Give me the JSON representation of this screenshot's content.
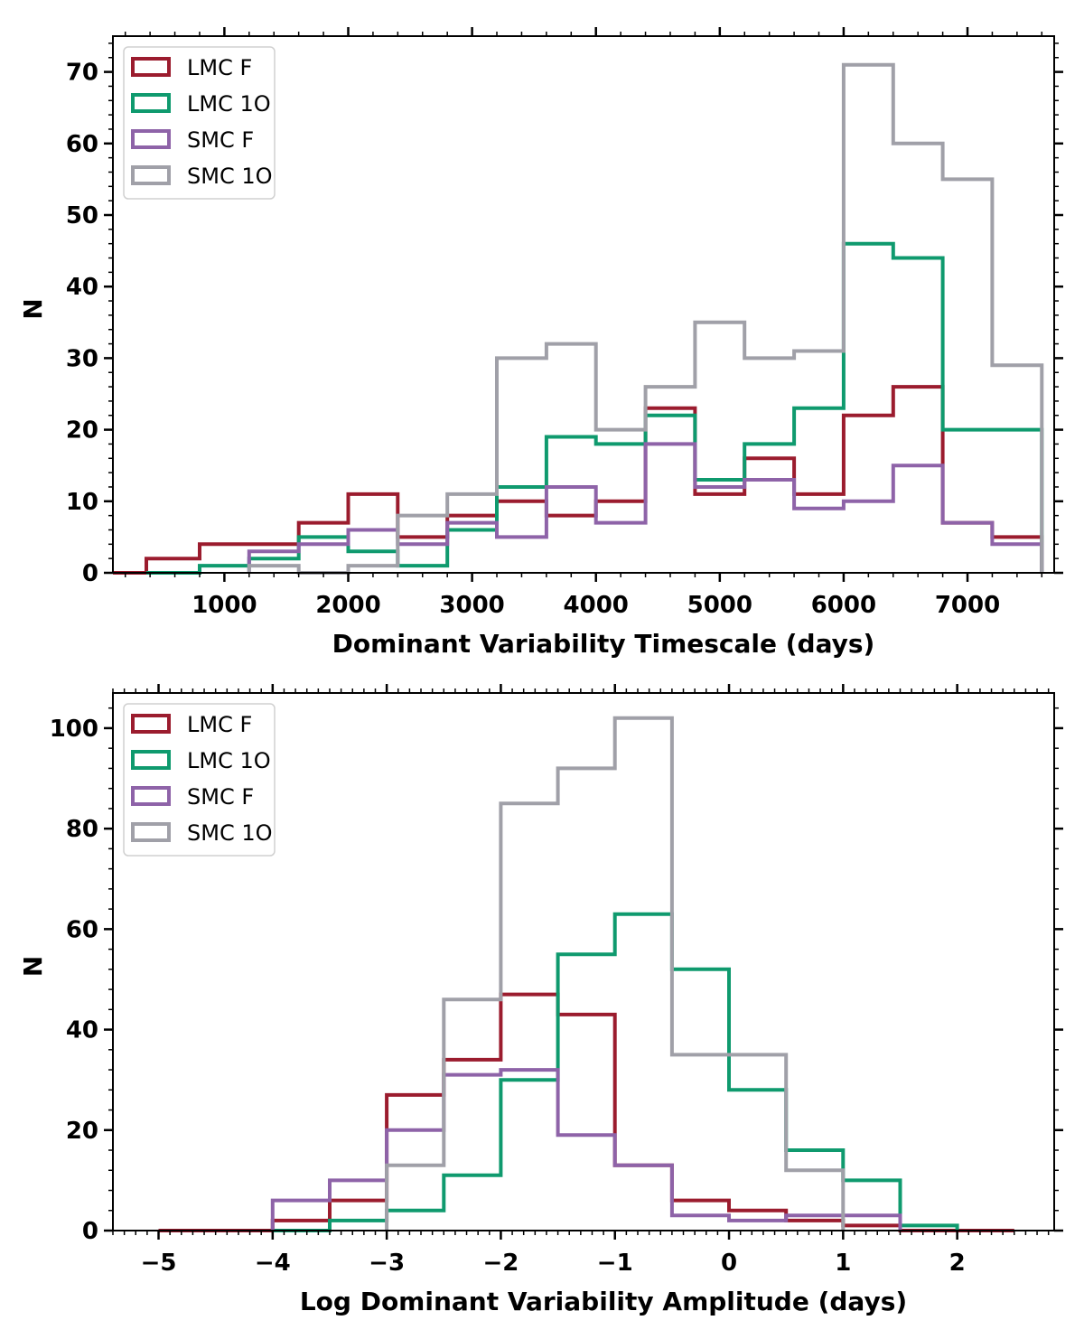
{
  "chart_data": [
    {
      "type": "histogram-step",
      "xlabel": "Dominant Variability Timescale (days)",
      "ylabel": "N",
      "xlim": [
        100,
        7700
      ],
      "ylim": [
        0,
        75
      ],
      "xticks": [
        1000,
        2000,
        3000,
        4000,
        5000,
        6000,
        7000
      ],
      "xtick_labels": [
        "1000",
        "2000",
        "3000",
        "4000",
        "5000",
        "6000",
        "7000"
      ],
      "yticks": [
        0,
        10,
        20,
        30,
        40,
        50,
        60,
        70
      ],
      "ytick_labels": [
        "0",
        "10",
        "20",
        "30",
        "40",
        "50",
        "60",
        "70"
      ],
      "legend_position": "top-left",
      "series": [
        {
          "name": "LMC F",
          "color": "#9b1c2e",
          "edges": [
            100,
            370,
            800,
            1200,
            1600,
            2000,
            2400,
            2800,
            3200,
            3600,
            4000,
            4400,
            4800,
            5200,
            5600,
            6000,
            6400,
            6800,
            7200,
            7600
          ],
          "values": [
            0,
            2,
            4,
            4,
            7,
            11,
            5,
            8,
            10,
            8,
            10,
            23,
            11,
            16,
            11,
            22,
            26,
            7,
            5
          ]
        },
        {
          "name": "LMC 1O",
          "color": "#0f9a6e",
          "edges": [
            370,
            800,
            1200,
            1600,
            2000,
            2400,
            2800,
            3200,
            3600,
            4000,
            4400,
            4800,
            5200,
            5600,
            6000,
            6400,
            6800,
            7200,
            7600
          ],
          "values": [
            0,
            1,
            2,
            5,
            3,
            1,
            6,
            12,
            19,
            18,
            22,
            13,
            18,
            23,
            46,
            44,
            20,
            20
          ]
        },
        {
          "name": "SMC F",
          "color": "#8e63a8",
          "edges": [
            1200,
            1600,
            2000,
            2400,
            2800,
            3200,
            3600,
            4000,
            4400,
            4800,
            5200,
            5600,
            6000,
            6400,
            6800,
            7200,
            7600
          ],
          "values": [
            3,
            4,
            6,
            4,
            7,
            5,
            12,
            7,
            18,
            12,
            13,
            9,
            10,
            15,
            7,
            4
          ]
        },
        {
          "name": "SMC 1O",
          "color": "#a0a0a8",
          "edges": [
            1200,
            1600,
            2000,
            2400,
            2800,
            3200,
            3600,
            4000,
            4400,
            4800,
            5200,
            5600,
            6000,
            6400,
            6800,
            7200,
            7600
          ],
          "values": [
            1,
            0,
            1,
            8,
            11,
            30,
            32,
            20,
            26,
            35,
            30,
            31,
            71,
            60,
            55,
            29
          ]
        }
      ]
    },
    {
      "type": "histogram-step",
      "xlabel": "Log Dominant Variability Amplitude (days)",
      "ylabel": "N",
      "xlim": [
        -5.4,
        2.85
      ],
      "ylim": [
        0,
        107
      ],
      "xticks": [
        -5,
        -4,
        -3,
        -2,
        -1,
        0,
        1,
        2
      ],
      "xtick_labels": [
        "−5",
        "−4",
        "−3",
        "−2",
        "−1",
        "0",
        "1",
        "2"
      ],
      "yticks": [
        0,
        20,
        40,
        60,
        80,
        100
      ],
      "ytick_labels": [
        "0",
        "20",
        "40",
        "60",
        "80",
        "100"
      ],
      "legend_position": "top-left",
      "series": [
        {
          "name": "LMC F",
          "color": "#9b1c2e",
          "edges": [
            -5.0,
            -4.0,
            -3.5,
            -3.0,
            -2.5,
            -2.0,
            -1.5,
            -1.0,
            -0.5,
            0.0,
            0.5,
            1.0,
            1.5,
            2.0,
            2.5
          ],
          "values": [
            0,
            2,
            6,
            27,
            34,
            47,
            43,
            13,
            6,
            4,
            2,
            1,
            0,
            0
          ]
        },
        {
          "name": "LMC 1O",
          "color": "#0f9a6e",
          "edges": [
            -4.0,
            -3.5,
            -3.0,
            -2.5,
            -2.0,
            -1.5,
            -1.0,
            -0.5,
            0.0,
            0.5,
            1.0,
            1.5,
            2.0
          ],
          "values": [
            0,
            2,
            4,
            11,
            30,
            55,
            63,
            52,
            28,
            16,
            10,
            1
          ]
        },
        {
          "name": "SMC F",
          "color": "#8e63a8",
          "edges": [
            -4.0,
            -3.5,
            -3.0,
            -2.5,
            -2.0,
            -1.5,
            -1.0,
            -0.5,
            0.0,
            0.5,
            1.0,
            1.5
          ],
          "values": [
            6,
            10,
            20,
            31,
            32,
            19,
            13,
            3,
            2,
            3,
            3
          ]
        },
        {
          "name": "SMC 1O",
          "color": "#a0a0a8",
          "edges": [
            -3.0,
            -2.5,
            -2.0,
            -1.5,
            -1.0,
            -0.5,
            0.0,
            0.5,
            1.0
          ],
          "values": [
            13,
            46,
            85,
            92,
            102,
            35,
            35,
            12
          ]
        }
      ]
    }
  ]
}
